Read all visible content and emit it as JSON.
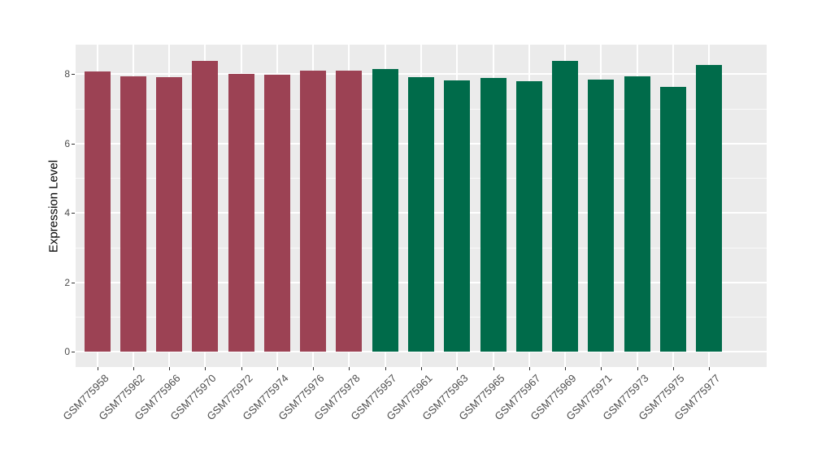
{
  "figure": {
    "background": "#FFFFFF"
  },
  "chart_data": {
    "type": "bar",
    "title": "",
    "xlabel": "",
    "ylabel": "Expression Level",
    "categories": [
      "GSM775958",
      "GSM775962",
      "GSM775966",
      "GSM775970",
      "GSM775972",
      "GSM775974",
      "GSM775976",
      "GSM775978",
      "GSM775957",
      "GSM775961",
      "GSM775963",
      "GSM775965",
      "GSM775967",
      "GSM775969",
      "GSM775971",
      "GSM775973",
      "GSM775975",
      "GSM775977"
    ],
    "values": [
      8.08,
      7.92,
      7.9,
      8.37,
      8.0,
      7.98,
      8.1,
      8.09,
      8.15,
      7.91,
      7.82,
      7.88,
      7.79,
      8.38,
      7.84,
      7.92,
      7.63,
      8.26
    ],
    "bar_groups": [
      "group1",
      "group1",
      "group1",
      "group1",
      "group1",
      "group1",
      "group1",
      "group1",
      "group2",
      "group2",
      "group2",
      "group2",
      "group2",
      "group2",
      "group2",
      "group2",
      "group2",
      "group2"
    ],
    "group_colors": {
      "group1": "#9C4254",
      "group2": "#006B4A"
    },
    "yticks": [
      0,
      2,
      4,
      6,
      8
    ],
    "yminor": [
      1,
      3,
      5,
      7
    ],
    "ylim": [
      0,
      8.8
    ],
    "grid": "on",
    "legend": "none",
    "panel_background": "#EBEBEB",
    "grid_color": "#FFFFFF",
    "tick_label_color": "#4D4D4D",
    "axis_title_color": "#000000"
  }
}
